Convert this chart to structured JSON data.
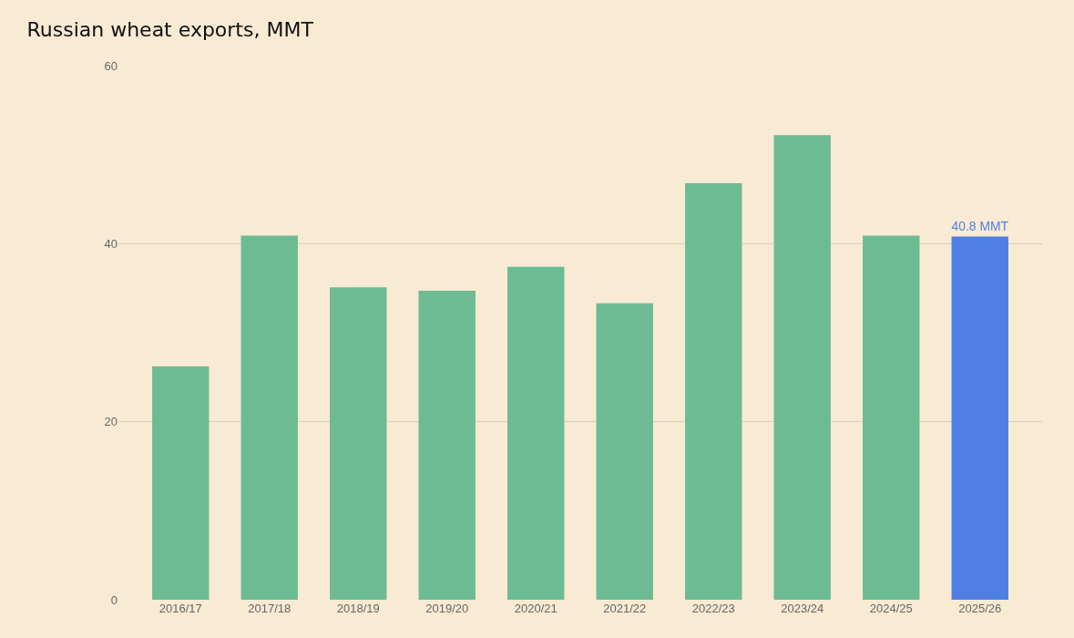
{
  "chart_data": {
    "type": "bar",
    "title": "Russian wheat exports, MMT",
    "categories": [
      "2016/17",
      "2017/18",
      "2018/19",
      "2019/20",
      "2020/21",
      "2021/22",
      "2022/23",
      "2023/24",
      "2024/25",
      "2025/26"
    ],
    "values": [
      26.2,
      40.9,
      35.1,
      34.7,
      37.4,
      33.3,
      46.8,
      52.2,
      40.9,
      40.8
    ],
    "colors": [
      "#6dbb92",
      "#6dbb92",
      "#6dbb92",
      "#6dbb92",
      "#6dbb92",
      "#6dbb92",
      "#6dbb92",
      "#6dbb92",
      "#6dbb92",
      "#4f7fe2"
    ],
    "value_labels": [
      null,
      null,
      null,
      null,
      null,
      null,
      null,
      null,
      null,
      "40.8 MMT"
    ],
    "ylim": [
      0,
      60
    ],
    "yticks": [
      0,
      20,
      40,
      60
    ],
    "grid": "y",
    "legend": false
  }
}
